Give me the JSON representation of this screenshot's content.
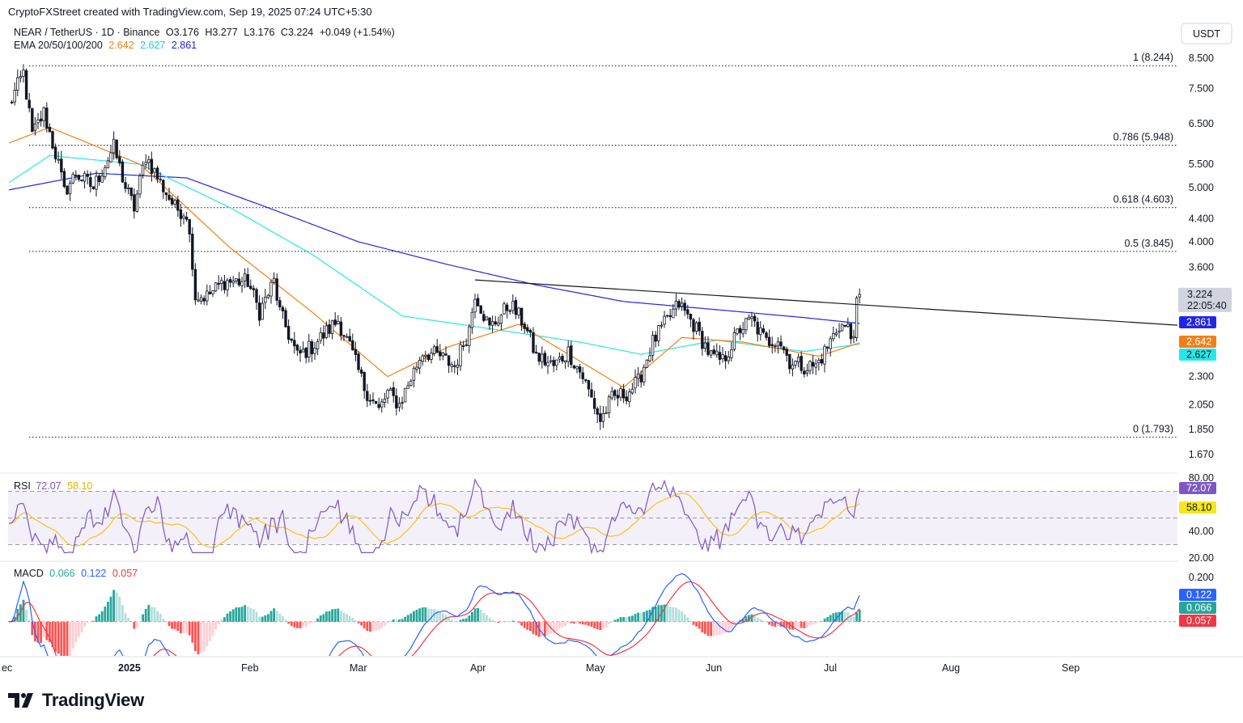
{
  "header": {
    "credit": "CryptoFXStreet created with TradingView.com, Sep 19, 2025 07:24 UTC+5:30"
  },
  "legend": {
    "symbol": "NEAR / TetherUS · 1D · Binance",
    "open_label": "O",
    "open": "3.176",
    "high_label": "H",
    "high": "3.277",
    "low_label": "L",
    "low": "3.176",
    "close_label": "C",
    "close": "3.224",
    "change": "+0.049 (+1.54%)",
    "ema_label": "EMA 20/50/100/200",
    "ema20": "2.642",
    "ema50": "2.627",
    "ema200": "2.861"
  },
  "currency": "USDT",
  "price_badge": {
    "price": "3.224",
    "countdown": "22:05:40"
  },
  "ema_badges": [
    {
      "value": "2.861",
      "color": "#2424e6",
      "text_color": "#ffffff"
    },
    {
      "value": "2.642",
      "color": "#f57f17",
      "text_color": "#ffffff"
    },
    {
      "value": "2.627",
      "color": "#26e8e8",
      "text_color": "#131722"
    }
  ],
  "fib_labels": [
    "1 (8.244)",
    "0.786 (5.948)",
    "0.618 (4.603)",
    "0.5 (3.845)",
    "0 (1.793)"
  ],
  "rsi": {
    "label": "RSI",
    "value": "72.07",
    "ma": "58.10",
    "ticks": [
      "80.00",
      "40.00",
      "20.00"
    ]
  },
  "macd": {
    "label": "MACD",
    "hist": "0.066",
    "macd": "0.122",
    "signal": "0.057",
    "ticks": [
      "0.200"
    ]
  },
  "x_axis_labels": [
    "ec",
    "2025",
    "Feb",
    "Mar",
    "Apr",
    "May",
    "Jun",
    "Jul",
    "Aug",
    "Sep"
  ],
  "branding": "TradingView",
  "colors": {
    "up": "#131722",
    "down": "#131722",
    "ema20": "#f57f17",
    "ema50": "#26e8e8",
    "ema200": "#2424e6",
    "rsi": "#7e57c2",
    "rsi_ma": "#f5c518",
    "macd": "#2962ff",
    "signal": "#f23645",
    "hist_up": "#26a69a",
    "hist_up_light": "#b2dfdb",
    "hist_down": "#ff5252",
    "hist_down_light": "#ffcdd2"
  },
  "chart_data": {
    "type": "candlestick",
    "price_axis": [
      "8.500",
      "7.500",
      "6.500",
      "5.500",
      "5.000",
      "4.400",
      "4.000",
      "3.600",
      "2.300",
      "2.050",
      "1.850",
      "1.670"
    ],
    "scale": "log",
    "fib_levels": [
      {
        "level": 1,
        "price": 8.244
      },
      {
        "level": 0.786,
        "price": 5.948
      },
      {
        "level": 0.618,
        "price": 4.603
      },
      {
        "level": 0.5,
        "price": 3.845
      },
      {
        "level": 0,
        "price": 1.793
      }
    ],
    "trendline": [
      {
        "date": "2025-05-10",
        "price": 3.42
      },
      {
        "date": "2025-09-22",
        "price": 2.84
      }
    ],
    "close_anchors": [
      {
        "date": "2024-12-01",
        "price": 7.0
      },
      {
        "date": "2024-12-06",
        "price": 8.0
      },
      {
        "date": "2024-12-09",
        "price": 6.2
      },
      {
        "date": "2024-12-13",
        "price": 6.8
      },
      {
        "date": "2024-12-18",
        "price": 5.5
      },
      {
        "date": "2024-12-20",
        "price": 4.9
      },
      {
        "date": "2024-12-24",
        "price": 5.3
      },
      {
        "date": "2024-12-30",
        "price": 5.0
      },
      {
        "date": "2025-01-06",
        "price": 5.9
      },
      {
        "date": "2025-01-10",
        "price": 5.0
      },
      {
        "date": "2025-01-13",
        "price": 4.6
      },
      {
        "date": "2025-01-17",
        "price": 5.7
      },
      {
        "date": "2025-01-22",
        "price": 5.1
      },
      {
        "date": "2025-01-27",
        "price": 4.6
      },
      {
        "date": "2025-01-31",
        "price": 4.5
      },
      {
        "date": "2025-02-02",
        "price": 3.7
      },
      {
        "date": "2025-02-03",
        "price": 3.2
      },
      {
        "date": "2025-02-07",
        "price": 3.2
      },
      {
        "date": "2025-02-13",
        "price": 3.4
      },
      {
        "date": "2025-02-21",
        "price": 3.4
      },
      {
        "date": "2025-02-25",
        "price": 3.0
      },
      {
        "date": "2025-03-02",
        "price": 3.4
      },
      {
        "date": "2025-03-04",
        "price": 3.0
      },
      {
        "date": "2025-03-10",
        "price": 2.5
      },
      {
        "date": "2025-03-15",
        "price": 2.6
      },
      {
        "date": "2025-03-24",
        "price": 2.9
      },
      {
        "date": "2025-03-28",
        "price": 2.6
      },
      {
        "date": "2025-04-02",
        "price": 2.2
      },
      {
        "date": "2025-04-07",
        "price": 2.0
      },
      {
        "date": "2025-04-10",
        "price": 2.15
      },
      {
        "date": "2025-04-14",
        "price": 2.05
      },
      {
        "date": "2025-04-22",
        "price": 2.55
      },
      {
        "date": "2025-04-28",
        "price": 2.5
      },
      {
        "date": "2025-05-03",
        "price": 2.4
      },
      {
        "date": "2025-05-08",
        "price": 2.8
      },
      {
        "date": "2025-05-10",
        "price": 3.25
      },
      {
        "date": "2025-05-15",
        "price": 2.8
      },
      {
        "date": "2025-05-22",
        "price": 3.1
      },
      {
        "date": "2025-05-27",
        "price": 2.85
      },
      {
        "date": "2025-05-31",
        "price": 2.5
      },
      {
        "date": "2025-06-06",
        "price": 2.4
      },
      {
        "date": "2025-06-11",
        "price": 2.55
      },
      {
        "date": "2025-06-16",
        "price": 2.3
      },
      {
        "date": "2025-06-22",
        "price": 1.92
      },
      {
        "date": "2025-06-26",
        "price": 2.1
      },
      {
        "date": "2025-07-01",
        "price": 2.15
      },
      {
        "date": "2025-07-05",
        "price": 2.25
      },
      {
        "date": "2025-07-10",
        "price": 2.65
      },
      {
        "date": "2025-07-15",
        "price": 2.9
      },
      {
        "date": "2025-07-19",
        "price": 3.1
      },
      {
        "date": "2025-07-24",
        "price": 2.85
      },
      {
        "date": "2025-07-30",
        "price": 2.5
      },
      {
        "date": "2025-08-03",
        "price": 2.45
      },
      {
        "date": "2025-08-09",
        "price": 2.8
      },
      {
        "date": "2025-08-13",
        "price": 2.9
      },
      {
        "date": "2025-08-18",
        "price": 2.65
      },
      {
        "date": "2025-08-22",
        "price": 2.7
      },
      {
        "date": "2025-08-26",
        "price": 2.45
      },
      {
        "date": "2025-08-31",
        "price": 2.4
      },
      {
        "date": "2025-09-04",
        "price": 2.4
      },
      {
        "date": "2025-09-08",
        "price": 2.6
      },
      {
        "date": "2025-09-12",
        "price": 2.85
      },
      {
        "date": "2025-09-15",
        "price": 2.8
      },
      {
        "date": "2025-09-16",
        "price": 2.7
      },
      {
        "date": "2025-09-17",
        "price": 2.8
      },
      {
        "date": "2025-09-18",
        "price": 3.176
      },
      {
        "date": "2025-09-19",
        "price": 3.224
      }
    ],
    "ema200_anchors": [
      {
        "date": "2024-12-01",
        "price": 4.95
      },
      {
        "date": "2024-12-31",
        "price": 5.3
      },
      {
        "date": "2025-01-31",
        "price": 5.2
      },
      {
        "date": "2025-02-28",
        "price": 4.6
      },
      {
        "date": "2025-03-31",
        "price": 4.0
      },
      {
        "date": "2025-04-30",
        "price": 3.65
      },
      {
        "date": "2025-05-31",
        "price": 3.35
      },
      {
        "date": "2025-06-30",
        "price": 3.13
      },
      {
        "date": "2025-07-31",
        "price": 3.03
      },
      {
        "date": "2025-08-31",
        "price": 2.93
      },
      {
        "date": "2025-09-19",
        "price": 2.861
      }
    ],
    "ema50_anchors": [
      {
        "date": "2024-12-01",
        "price": 5.1
      },
      {
        "date": "2024-12-15",
        "price": 5.7
      },
      {
        "date": "2025-01-15",
        "price": 5.5
      },
      {
        "date": "2025-02-15",
        "price": 4.6
      },
      {
        "date": "2025-03-15",
        "price": 3.8
      },
      {
        "date": "2025-04-15",
        "price": 2.95
      },
      {
        "date": "2025-05-15",
        "price": 2.8
      },
      {
        "date": "2025-06-15",
        "price": 2.65
      },
      {
        "date": "2025-07-06",
        "price": 2.52
      },
      {
        "date": "2025-08-01",
        "price": 2.67
      },
      {
        "date": "2025-08-31",
        "price": 2.55
      },
      {
        "date": "2025-09-19",
        "price": 2.627
      }
    ],
    "ema20_anchors": [
      {
        "date": "2024-12-01",
        "price": 6.0
      },
      {
        "date": "2024-12-15",
        "price": 6.4
      },
      {
        "date": "2025-01-15",
        "price": 5.5
      },
      {
        "date": "2025-02-15",
        "price": 3.9
      },
      {
        "date": "2025-03-15",
        "price": 3.0
      },
      {
        "date": "2025-04-10",
        "price": 2.3
      },
      {
        "date": "2025-05-01",
        "price": 2.6
      },
      {
        "date": "2025-05-25",
        "price": 2.85
      },
      {
        "date": "2025-06-15",
        "price": 2.45
      },
      {
        "date": "2025-06-30",
        "price": 2.2
      },
      {
        "date": "2025-07-20",
        "price": 2.7
      },
      {
        "date": "2025-08-10",
        "price": 2.65
      },
      {
        "date": "2025-09-05",
        "price": 2.5
      },
      {
        "date": "2025-09-19",
        "price": 2.642
      }
    ],
    "rsi_range": [
      20,
      80
    ],
    "rsi_bands": [
      30,
      50,
      70
    ],
    "macd_range": [
      -0.15,
      0.25
    ]
  }
}
